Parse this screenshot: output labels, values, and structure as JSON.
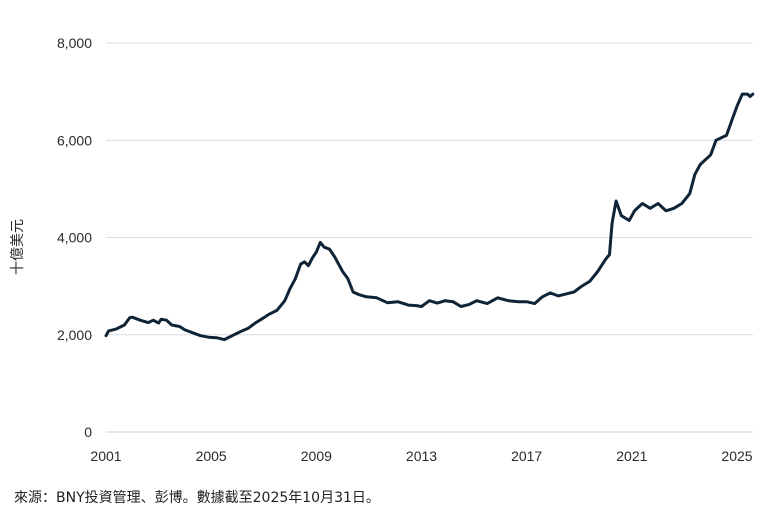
{
  "chart_data": {
    "type": "line",
    "title": "",
    "xlabel": "",
    "ylabel": "十億美元",
    "ylim": [
      0,
      8000
    ],
    "xlim": [
      2001,
      2025.8
    ],
    "y_ticks": [
      0,
      2000,
      4000,
      6000,
      8000
    ],
    "y_tick_labels": [
      "0",
      "2,000",
      "4,000",
      "6,000",
      "8,000"
    ],
    "x_ticks": [
      2001,
      2005,
      2009,
      2013,
      2017,
      2021,
      2025
    ],
    "x_tick_labels": [
      "2001",
      "2005",
      "2009",
      "2013",
      "2017",
      "2021",
      "2025"
    ],
    "grid": true,
    "color": "#0f2437",
    "series": [
      {
        "x": [
          2001.0,
          2001.1,
          2001.4,
          2001.7,
          2001.9,
          2002.0,
          2002.3,
          2002.6,
          2002.8,
          2003.0,
          2003.1,
          2003.3,
          2003.5,
          2003.8,
          2004.0,
          2004.3,
          2004.6,
          2004.9,
          2005.2,
          2005.5,
          2005.8,
          2006.1,
          2006.4,
          2006.7,
          2007.0,
          2007.2,
          2007.5,
          2007.8,
          2008.0,
          2008.2,
          2008.4,
          2008.55,
          2008.7,
          2008.85,
          2009.0,
          2009.15,
          2009.3,
          2009.5,
          2009.7,
          2010.0,
          2010.2,
          2010.4,
          2010.6,
          2010.9,
          2011.3,
          2011.7,
          2012.1,
          2012.5,
          2012.8,
          2013.0,
          2013.3,
          2013.6,
          2013.9,
          2014.2,
          2014.5,
          2014.8,
          2015.1,
          2015.5,
          2015.9,
          2016.3,
          2016.7,
          2017.0,
          2017.3,
          2017.6,
          2017.9,
          2018.2,
          2018.5,
          2018.8,
          2019.1,
          2019.4,
          2019.7,
          2020.0,
          2020.15,
          2020.25,
          2020.4,
          2020.6,
          2020.9,
          2021.1,
          2021.4,
          2021.7,
          2022.0,
          2022.3,
          2022.6,
          2022.9,
          2023.2,
          2023.4,
          2023.6,
          2023.8,
          2024.0,
          2024.2,
          2024.4,
          2024.6,
          2024.8,
          2025.0,
          2025.2,
          2025.4,
          2025.5,
          2025.6
        ],
        "values": [
          1980,
          2080,
          2120,
          2200,
          2350,
          2360,
          2300,
          2250,
          2300,
          2240,
          2320,
          2300,
          2200,
          2170,
          2100,
          2040,
          1980,
          1950,
          1940,
          1900,
          1980,
          2060,
          2130,
          2250,
          2350,
          2420,
          2500,
          2700,
          2950,
          3150,
          3450,
          3500,
          3420,
          3580,
          3700,
          3900,
          3800,
          3760,
          3600,
          3300,
          3150,
          2880,
          2830,
          2780,
          2760,
          2660,
          2680,
          2610,
          2600,
          2580,
          2700,
          2650,
          2700,
          2680,
          2580,
          2620,
          2700,
          2640,
          2760,
          2700,
          2680,
          2680,
          2640,
          2780,
          2860,
          2800,
          2840,
          2880,
          3000,
          3100,
          3300,
          3550,
          3650,
          4300,
          4750,
          4450,
          4350,
          4550,
          4700,
          4600,
          4700,
          4550,
          4600,
          4700,
          4900,
          5300,
          5500,
          5600,
          5700,
          6000,
          6050,
          6100,
          6400,
          6700,
          6950,
          6950,
          6900,
          6950
        ]
      }
    ]
  },
  "source_note": "來源：BNY投資管理、彭博。數據截至2025年10月31日。"
}
